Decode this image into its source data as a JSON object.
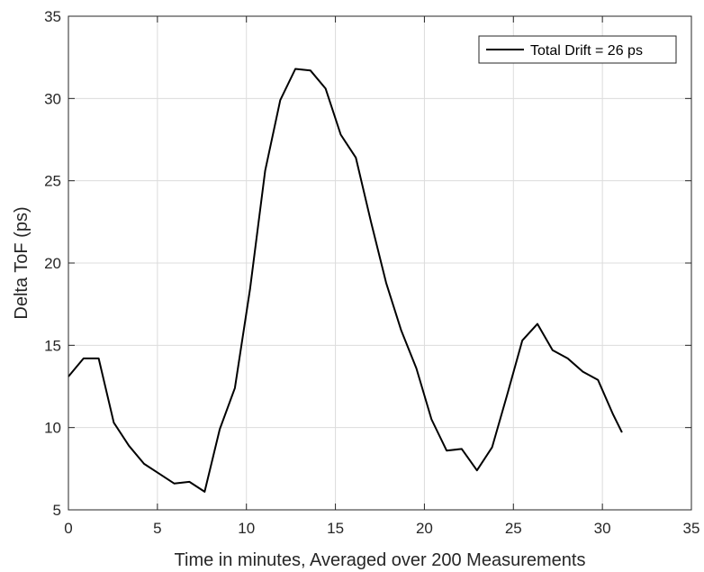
{
  "chart_data": {
    "type": "line",
    "title": "",
    "xlabel": "Time in minutes, Averaged over 200 Measurements",
    "ylabel": "Delta ToF (ps)",
    "xlim": [
      0,
      35
    ],
    "ylim": [
      5,
      35
    ],
    "xticks": [
      0,
      5,
      10,
      15,
      20,
      25,
      30,
      35
    ],
    "yticks": [
      5,
      10,
      15,
      20,
      25,
      30,
      35
    ],
    "grid": true,
    "legend_position": "top-right",
    "series": [
      {
        "name": "Total Drift = 26 ps",
        "color": "#000000",
        "x": [
          0.0,
          0.85,
          1.7,
          2.55,
          3.4,
          4.25,
          5.1,
          5.95,
          6.8,
          7.65,
          8.5,
          9.35,
          10.2,
          11.05,
          11.9,
          12.75,
          13.6,
          14.45,
          15.3,
          16.15,
          17.0,
          17.85,
          18.7,
          19.55,
          20.4,
          21.25,
          22.1,
          22.95,
          23.8,
          24.65,
          25.5,
          26.35,
          27.2,
          28.05,
          28.9,
          29.75,
          30.6,
          31.1
        ],
        "y": [
          13.1,
          14.2,
          14.2,
          10.3,
          8.9,
          7.8,
          7.2,
          6.6,
          6.7,
          6.1,
          9.9,
          12.4,
          18.4,
          25.6,
          29.9,
          31.8,
          31.7,
          30.6,
          27.8,
          26.4,
          22.5,
          18.8,
          15.9,
          13.6,
          10.5,
          8.6,
          8.7,
          7.4,
          8.8,
          12.0,
          15.3,
          16.3,
          14.7,
          14.2,
          13.4,
          12.9,
          10.8,
          9.7
        ]
      }
    ]
  }
}
